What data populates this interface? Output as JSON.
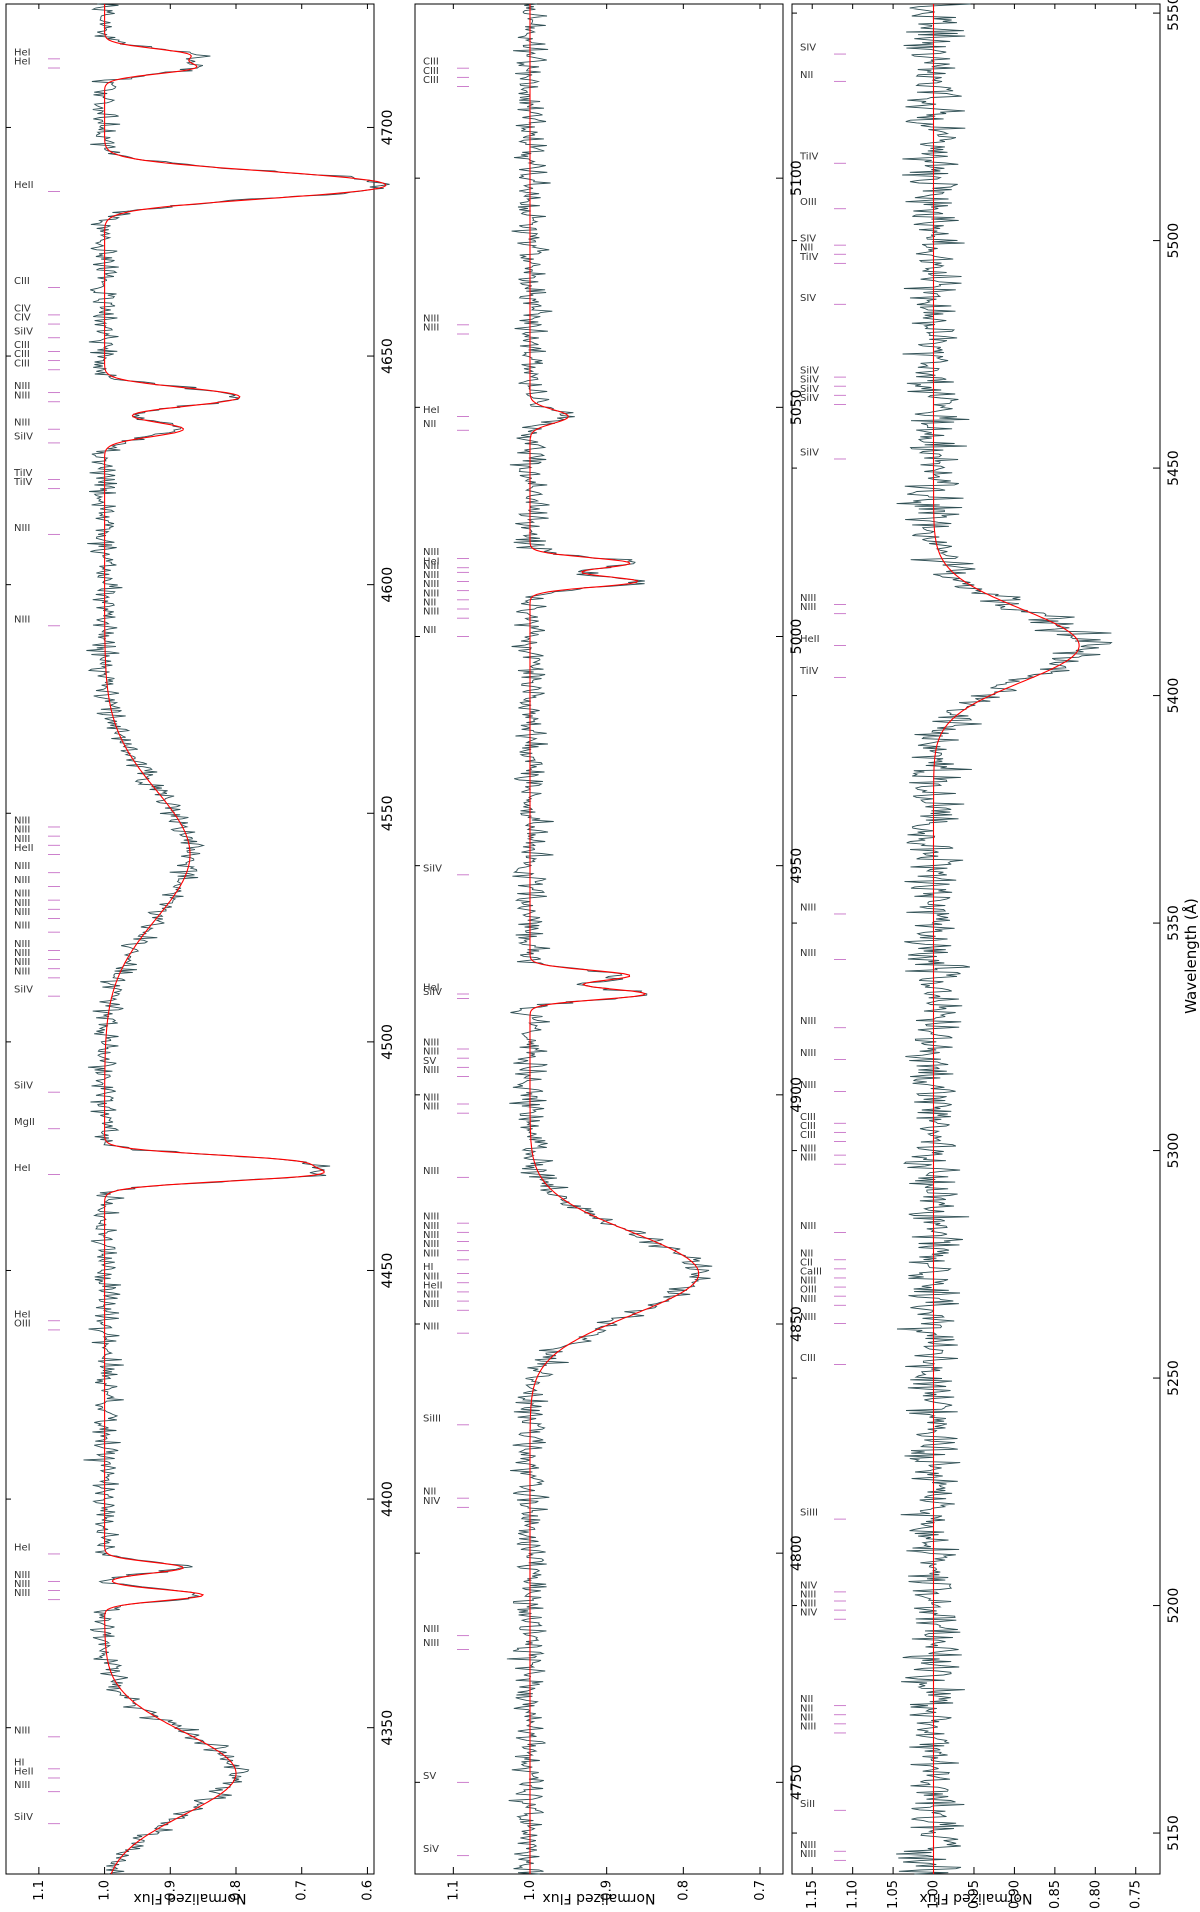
{
  "figure": {
    "xlabel": "Wavelength (Å)",
    "ylabel": "Normalized Flux",
    "colors": {
      "observed": "#2f4f54",
      "model": "#ff0000",
      "line_mark": "#c060c0",
      "frame": "#000000"
    }
  },
  "chart_data": [
    {
      "type": "line",
      "panel": "top",
      "xlim": [
        4318,
        4727
      ],
      "ylim": [
        0.59,
        1.15
      ],
      "x_ticks": [
        "4350",
        "4400",
        "4450",
        "4500",
        "4550",
        "4600",
        "4650",
        "4700"
      ],
      "y_ticks": [
        "1.1",
        "1.0",
        "0.9",
        "0.8",
        "0.7",
        "0.6"
      ],
      "series": [
        {
          "role": "observed"
        },
        {
          "role": "model"
        }
      ],
      "absorption_features": [
        {
          "center": 4340,
          "depth": 0.2,
          "width": 9
        },
        {
          "center": 4379,
          "depth": 0.15,
          "width": 1.2
        },
        {
          "center": 4385,
          "depth": 0.12,
          "width": 1.2
        },
        {
          "center": 4471,
          "depth": 0.3,
          "width": 1.5
        },
        {
          "center": 4474,
          "depth": 0.25,
          "width": 1.4
        },
        {
          "center": 4541,
          "depth": 0.13,
          "width": 14
        },
        {
          "center": 4634,
          "depth": 0.12,
          "width": 1.6
        },
        {
          "center": 4640,
          "depth": 0.12,
          "width": 1.6
        },
        {
          "center": 4642,
          "depth": 0.13,
          "width": 1.6
        },
        {
          "center": 4686,
          "depth": 0.28,
          "width": 2.2
        },
        {
          "center": 4689,
          "depth": 0.26,
          "width": 2.2
        },
        {
          "center": 4713,
          "depth": 0.13,
          "width": 1.3
        },
        {
          "center": 4716,
          "depth": 0.12,
          "width": 1.3
        }
      ],
      "line_labels": [
        {
          "x": 4329,
          "label": "SiIV"
        },
        {
          "x": 4336,
          "label": "NIII"
        },
        {
          "x": 4339,
          "label": "HeII"
        },
        {
          "x": 4341,
          "label": "HI"
        },
        {
          "x": 4348,
          "label": "NIII"
        },
        {
          "x": 4378,
          "label": "NIII"
        },
        {
          "x": 4380,
          "label": "NIII"
        },
        {
          "x": 4382,
          "label": "NIII"
        },
        {
          "x": 4388,
          "label": "HeI"
        },
        {
          "x": 4437,
          "label": "OIII"
        },
        {
          "x": 4439,
          "label": "HeI"
        },
        {
          "x": 4471,
          "label": "HeI"
        },
        {
          "x": 4481,
          "label": "MgII"
        },
        {
          "x": 4489,
          "label": "SiIV"
        },
        {
          "x": 4510,
          "label": "SiIV"
        },
        {
          "x": 4514,
          "label": "NIII"
        },
        {
          "x": 4516,
          "label": "NIII"
        },
        {
          "x": 4518,
          "label": "NIII"
        },
        {
          "x": 4520,
          "label": "NIII"
        },
        {
          "x": 4524,
          "label": "NIII"
        },
        {
          "x": 4527,
          "label": "NIII"
        },
        {
          "x": 4529,
          "label": "NIII"
        },
        {
          "x": 4531,
          "label": "NIII"
        },
        {
          "x": 4534,
          "label": "NIII"
        },
        {
          "x": 4537,
          "label": "NIII"
        },
        {
          "x": 4541,
          "label": "HeII"
        },
        {
          "x": 4543,
          "label": "NIII"
        },
        {
          "x": 4545,
          "label": "NIII"
        },
        {
          "x": 4547,
          "label": "NIII"
        },
        {
          "x": 4591,
          "label": "NIII"
        },
        {
          "x": 4611,
          "label": "NIII"
        },
        {
          "x": 4621,
          "label": "TiIV"
        },
        {
          "x": 4623,
          "label": "TiIV"
        },
        {
          "x": 4631,
          "label": "SiIV"
        },
        {
          "x": 4634,
          "label": "NIII"
        },
        {
          "x": 4640,
          "label": "NIII"
        },
        {
          "x": 4642,
          "label": "NIII"
        },
        {
          "x": 4647,
          "label": "CIII"
        },
        {
          "x": 4649,
          "label": "CIII"
        },
        {
          "x": 4651,
          "label": "CIII"
        },
        {
          "x": 4654,
          "label": "SiIV"
        },
        {
          "x": 4657,
          "label": "CIV"
        },
        {
          "x": 4659,
          "label": "CIV"
        },
        {
          "x": 4665,
          "label": "CIII"
        },
        {
          "x": 4686,
          "label": "HeII"
        },
        {
          "x": 4713,
          "label": "HeI"
        },
        {
          "x": 4715,
          "label": "HeI"
        }
      ]
    },
    {
      "type": "line",
      "panel": "middle",
      "xlim": [
        4730,
        5138
      ],
      "ylim": [
        0.67,
        1.15
      ],
      "x_ticks": [
        "4750",
        "4800",
        "4850",
        "4900",
        "4950",
        "5000",
        "5050",
        "5100"
      ],
      "y_ticks": [
        "1.1",
        "1.0",
        "0.9",
        "0.8",
        "0.7"
      ],
      "series": [
        {
          "role": "observed"
        },
        {
          "role": "model"
        }
      ],
      "absorption_features": [
        {
          "center": 4861,
          "depth": 0.22,
          "width": 9
        },
        {
          "center": 4922,
          "depth": 0.15,
          "width": 1.2
        },
        {
          "center": 4926,
          "depth": 0.13,
          "width": 1.2
        },
        {
          "center": 5012,
          "depth": 0.14,
          "width": 1.2
        },
        {
          "center": 5016,
          "depth": 0.13,
          "width": 1.2
        },
        {
          "center": 5048,
          "depth": 0.05,
          "width": 1.5
        }
      ],
      "line_labels": [
        {
          "x": 4734,
          "label": "SiV"
        },
        {
          "x": 4750,
          "label": "SV"
        },
        {
          "x": 4779,
          "label": "NIII"
        },
        {
          "x": 4782,
          "label": "NIII"
        },
        {
          "x": 4810,
          "label": "NIV"
        },
        {
          "x": 4812,
          "label": "NII"
        },
        {
          "x": 4828,
          "label": "SiIII"
        },
        {
          "x": 4848,
          "label": "NIII"
        },
        {
          "x": 4853,
          "label": "NIII"
        },
        {
          "x": 4855,
          "label": "NIII"
        },
        {
          "x": 4857,
          "label": "HeII"
        },
        {
          "x": 4859,
          "label": "NIII"
        },
        {
          "x": 4861,
          "label": "HI"
        },
        {
          "x": 4864,
          "label": "NIII"
        },
        {
          "x": 4866,
          "label": "NIII"
        },
        {
          "x": 4868,
          "label": "NIII"
        },
        {
          "x": 4870,
          "label": "NIII"
        },
        {
          "x": 4872,
          "label": "NIII"
        },
        {
          "x": 4882,
          "label": "NIII"
        },
        {
          "x": 4896,
          "label": "NIII"
        },
        {
          "x": 4898,
          "label": "NIII"
        },
        {
          "x": 4904,
          "label": "NIII"
        },
        {
          "x": 4906,
          "label": "SV"
        },
        {
          "x": 4908,
          "label": "NIII"
        },
        {
          "x": 4910,
          "label": "NIII"
        },
        {
          "x": 4921,
          "label": "SiIV"
        },
        {
          "x": 4922,
          "label": "HeI"
        },
        {
          "x": 4948,
          "label": "SiIV"
        },
        {
          "x": 5000,
          "label": "NII"
        },
        {
          "x": 5004,
          "label": "NIII"
        },
        {
          "x": 5006,
          "label": "NII"
        },
        {
          "x": 5008,
          "label": "NIII"
        },
        {
          "x": 5010,
          "label": "NIII"
        },
        {
          "x": 5012,
          "label": "NIII"
        },
        {
          "x": 5014,
          "label": "NIII"
        },
        {
          "x": 5015,
          "label": "HeI"
        },
        {
          "x": 5017,
          "label": "NIII"
        },
        {
          "x": 5045,
          "label": "NII"
        },
        {
          "x": 5048,
          "label": "HeI"
        },
        {
          "x": 5066,
          "label": "NIII"
        },
        {
          "x": 5068,
          "label": "NIII"
        },
        {
          "x": 5120,
          "label": "CIII"
        },
        {
          "x": 5122,
          "label": "CIII"
        },
        {
          "x": 5124,
          "label": "CIII"
        }
      ]
    },
    {
      "type": "line",
      "panel": "bottom",
      "xlim": [
        5141,
        5552
      ],
      "ylim": [
        0.72,
        1.175
      ],
      "x_ticks": [
        "5150",
        "5200",
        "5250",
        "5300",
        "5350",
        "5400",
        "5450",
        "5500",
        "5550"
      ],
      "y_ticks": [
        "1.15",
        "1.10",
        "1.05",
        "1.00",
        "0.95",
        "0.90",
        "0.85",
        "0.80",
        "0.75"
      ],
      "series": [
        {
          "role": "observed"
        },
        {
          "role": "model"
        }
      ],
      "absorption_features": [
        {
          "center": 5411,
          "depth": 0.18,
          "width": 8
        }
      ],
      "line_labels": [
        {
          "x": 5144,
          "label": "NIII"
        },
        {
          "x": 5146,
          "label": "NIII"
        },
        {
          "x": 5155,
          "label": "SiII"
        },
        {
          "x": 5172,
          "label": "NIII"
        },
        {
          "x": 5174,
          "label": "NII"
        },
        {
          "x": 5176,
          "label": "NII"
        },
        {
          "x": 5178,
          "label": "NII"
        },
        {
          "x": 5197,
          "label": "NIV"
        },
        {
          "x": 5199,
          "label": "NIII"
        },
        {
          "x": 5201,
          "label": "NIII"
        },
        {
          "x": 5203,
          "label": "NIV"
        },
        {
          "x": 5219,
          "label": "SiIII"
        },
        {
          "x": 5253,
          "label": "CIII"
        },
        {
          "x": 5262,
          "label": "NIII"
        },
        {
          "x": 5266,
          "label": "NIII"
        },
        {
          "x": 5268,
          "label": "OIII"
        },
        {
          "x": 5270,
          "label": "NIII"
        },
        {
          "x": 5272,
          "label": "CaIII"
        },
        {
          "x": 5274,
          "label": "CII"
        },
        {
          "x": 5276,
          "label": "NII"
        },
        {
          "x": 5282,
          "label": "NIII"
        },
        {
          "x": 5297,
          "label": "NIII"
        },
        {
          "x": 5299,
          "label": "NIII"
        },
        {
          "x": 5302,
          "label": "CIII"
        },
        {
          "x": 5304,
          "label": "CIII"
        },
        {
          "x": 5306,
          "label": "CIII"
        },
        {
          "x": 5313,
          "label": "NIII"
        },
        {
          "x": 5320,
          "label": "NIII"
        },
        {
          "x": 5327,
          "label": "NIII"
        },
        {
          "x": 5342,
          "label": "NIII"
        },
        {
          "x": 5352,
          "label": "NIII"
        },
        {
          "x": 5404,
          "label": "TiIV"
        },
        {
          "x": 5411,
          "label": "HeII"
        },
        {
          "x": 5418,
          "label": "NIII"
        },
        {
          "x": 5420,
          "label": "NIII"
        },
        {
          "x": 5452,
          "label": "SiIV"
        },
        {
          "x": 5464,
          "label": "SiIV"
        },
        {
          "x": 5466,
          "label": "SiIV"
        },
        {
          "x": 5468,
          "label": "SiIV"
        },
        {
          "x": 5470,
          "label": "SiIV"
        },
        {
          "x": 5486,
          "label": "SIV"
        },
        {
          "x": 5495,
          "label": "TiIV"
        },
        {
          "x": 5497,
          "label": "NII"
        },
        {
          "x": 5499,
          "label": "SIV"
        },
        {
          "x": 5507,
          "label": "OIII"
        },
        {
          "x": 5517,
          "label": "TiIV"
        },
        {
          "x": 5535,
          "label": "NII"
        },
        {
          "x": 5541,
          "label": "SIV"
        }
      ]
    }
  ]
}
